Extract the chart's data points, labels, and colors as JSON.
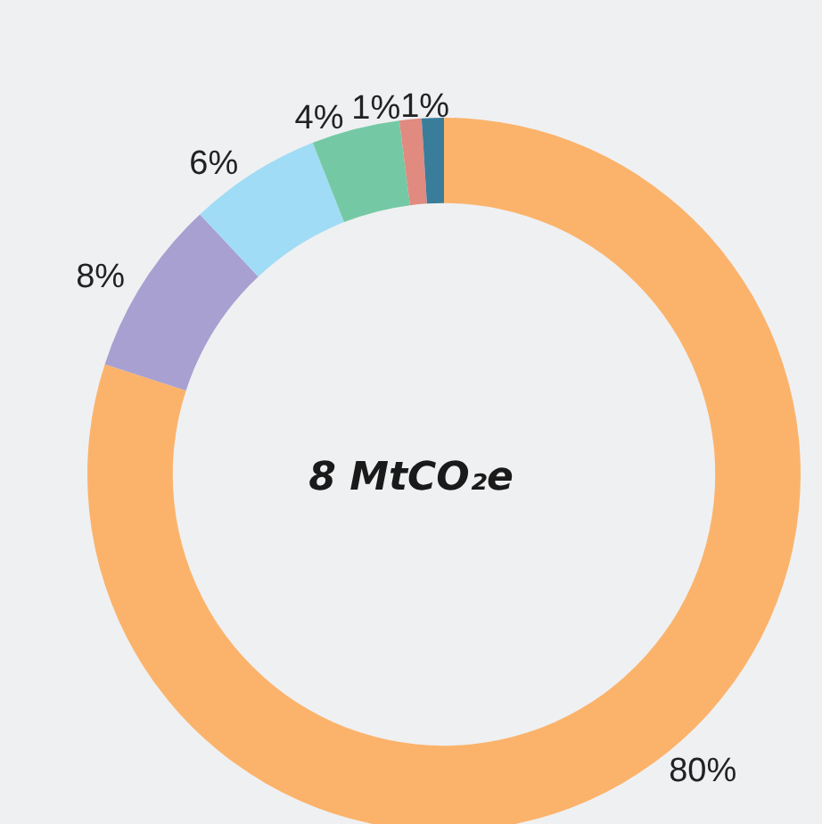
{
  "chart_data": {
    "type": "donut",
    "title": "8 MtCO₂e",
    "categories": [
      null,
      null,
      null,
      null,
      null,
      null
    ],
    "values": [
      80,
      8,
      6,
      4,
      1,
      1
    ],
    "value_labels": [
      "80%",
      "8%",
      "6%",
      "4%",
      "1%",
      "1%"
    ],
    "colors": [
      "#fbb36b",
      "#a8a0d0",
      "#a0dcf5",
      "#74c9a4",
      "#e08a80",
      "#3a7d9a"
    ]
  }
}
